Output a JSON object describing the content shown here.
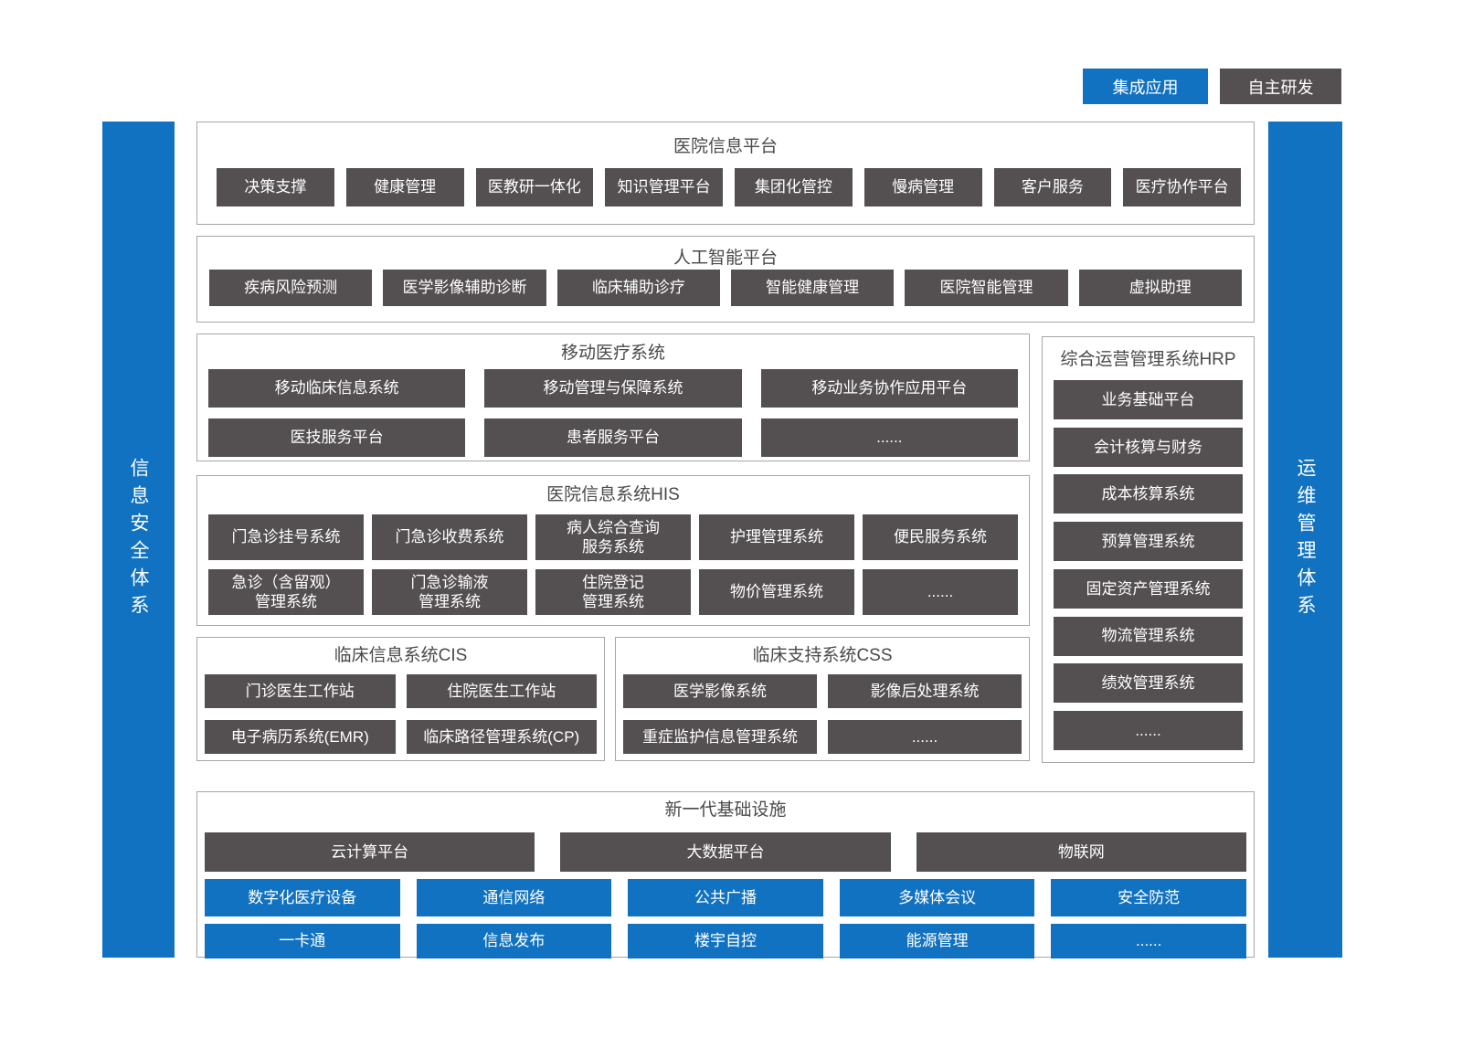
{
  "colors": {
    "blue": "#1272C2",
    "dark": "#545051",
    "border": "#A6A6A6"
  },
  "legend": {
    "integrated_label": "集成应用",
    "self_developed_label": "自主研发"
  },
  "side_bars": {
    "left": "信息安全体系",
    "right": "运维管理体系"
  },
  "hospital_info_platform": {
    "title": "医院信息平台",
    "items": [
      "决策支撑",
      "健康管理",
      "医教研一体化",
      "知识管理平台",
      "集团化管控",
      "慢病管理",
      "客户服务",
      "医疗协作平台"
    ]
  },
  "ai_platform": {
    "title": "人工智能平台",
    "items": [
      "疾病风险预测",
      "医学影像辅助诊断",
      "临床辅助诊疗",
      "智能健康管理",
      "医院智能管理",
      "虚拟助理"
    ]
  },
  "mobile_medical": {
    "title": "移动医疗系统",
    "row1": [
      "移动临床信息系统",
      "移动管理与保障系统",
      "移动业务协作应用平台"
    ],
    "row2": [
      "医技服务平台",
      "患者服务平台",
      "......"
    ]
  },
  "hrp": {
    "title": "综合运营管理系统HRP",
    "items": [
      "业务基础平台",
      "会计核算与财务",
      "成本核算系统",
      "预算管理系统",
      "固定资产管理系统",
      "物流管理系统",
      "绩效管理系统",
      "......"
    ]
  },
  "his": {
    "title": "医院信息系统HIS",
    "row1": [
      "门急诊挂号系统",
      "门急诊收费系统",
      "病人综合查询\n服务系统",
      "护理管理系统",
      "便民服务系统"
    ],
    "row2": [
      "急诊（含留观）\n管理系统",
      "门急诊输液\n管理系统",
      "住院登记\n管理系统",
      "物价管理系统",
      "......"
    ]
  },
  "cis": {
    "title": "临床信息系统CIS",
    "row1": [
      "门诊医生工作站",
      "住院医生工作站"
    ],
    "row2": [
      "电子病历系统(EMR)",
      "临床路径管理系统(CP)"
    ]
  },
  "css_system": {
    "title": "临床支持系统CSS",
    "row1": [
      "医学影像系统",
      "影像后处理系统"
    ],
    "row2": [
      "重症监护信息管理系统",
      "......"
    ]
  },
  "infrastructure": {
    "title": "新一代基础设施",
    "dark_row": [
      "云计算平台",
      "大数据平台",
      "物联网"
    ],
    "blue_row1": [
      "数字化医疗设备",
      "通信网络",
      "公共广播",
      "多媒体会议",
      "安全防范"
    ],
    "blue_row2": [
      "一卡通",
      "信息发布",
      "楼宇自控",
      "能源管理",
      "......"
    ]
  }
}
